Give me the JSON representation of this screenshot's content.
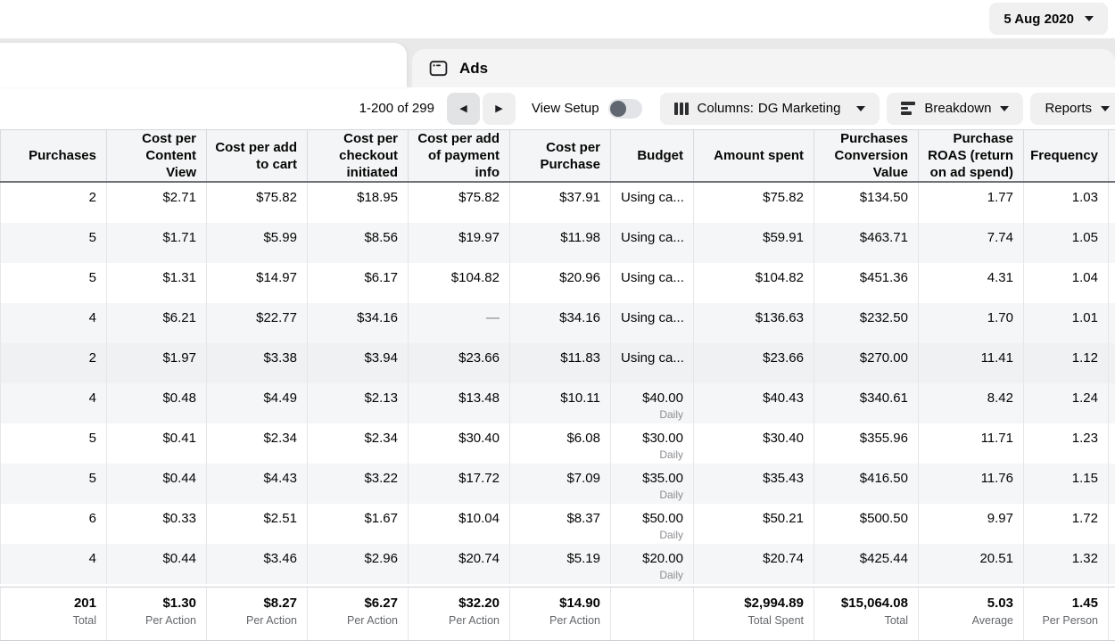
{
  "topbar": {
    "date_label": "5 Aug 2020"
  },
  "tabs": {
    "ads_label": "Ads"
  },
  "toolbar": {
    "pagination_text": "1-200 of 299",
    "view_setup_label": "View Setup",
    "columns_label": "Columns:",
    "columns_value": "DG Marketing",
    "breakdown_label": "Breakdown",
    "reports_label": "Reports"
  },
  "icons": {
    "arrow_left": "◀",
    "arrow_right": "▶",
    "caret_down": "▾"
  },
  "table": {
    "hovered_row": 5,
    "columns": [
      "Purchases",
      "Cost per Content View",
      "Cost per add to cart",
      "Cost per checkout initiated",
      "Cost per add of payment info",
      "Cost per Purchase",
      "Budget",
      "Amount spent",
      "Purchases Conversion Value",
      "Purchase ROAS (return on ad spend)",
      "Frequency"
    ],
    "rows": [
      [
        "2",
        "$2.71",
        "$75.82",
        "$18.95",
        "$75.82",
        "$37.91",
        {
          "text": "Using ca...",
          "align": "left"
        },
        "$75.82",
        "$134.50",
        "1.77",
        "1.03"
      ],
      [
        "5",
        "$1.71",
        "$5.99",
        "$8.56",
        "$19.97",
        "$11.98",
        {
          "text": "Using ca...",
          "align": "left"
        },
        "$59.91",
        "$463.71",
        "7.74",
        "1.05"
      ],
      [
        "5",
        "$1.31",
        "$14.97",
        "$6.17",
        "$104.82",
        "$20.96",
        {
          "text": "Using ca...",
          "align": "left"
        },
        "$104.82",
        "$451.36",
        "4.31",
        "1.04"
      ],
      [
        "4",
        "$6.21",
        "$22.77",
        "$34.16",
        "—",
        "$34.16",
        {
          "text": "Using ca...",
          "align": "left"
        },
        "$136.63",
        "$232.50",
        "1.70",
        "1.01"
      ],
      [
        "2",
        "$1.97",
        "$3.38",
        "$3.94",
        "$23.66",
        "$11.83",
        {
          "text": "Using ca...",
          "align": "left"
        },
        "$23.66",
        "$270.00",
        "11.41",
        "1.12"
      ],
      [
        "4",
        "$0.48",
        "$4.49",
        "$2.13",
        "$13.48",
        "$10.11",
        {
          "text": "$40.00",
          "sub": "Daily",
          "align": "right"
        },
        "$40.43",
        "$340.61",
        "8.42",
        "1.24"
      ],
      [
        "5",
        "$0.41",
        "$2.34",
        "$2.34",
        "$30.40",
        "$6.08",
        {
          "text": "$30.00",
          "sub": "Daily",
          "align": "right"
        },
        "$30.40",
        "$355.96",
        "11.71",
        "1.23"
      ],
      [
        "5",
        "$0.44",
        "$4.43",
        "$3.22",
        "$17.72",
        "$7.09",
        {
          "text": "$35.00",
          "sub": "Daily",
          "align": "right"
        },
        "$35.43",
        "$416.50",
        "11.76",
        "1.15"
      ],
      [
        "6",
        "$0.33",
        "$2.51",
        "$1.67",
        "$10.04",
        "$8.37",
        {
          "text": "$50.00",
          "sub": "Daily",
          "align": "right"
        },
        "$50.21",
        "$500.50",
        "9.97",
        "1.72"
      ],
      [
        "4",
        "$0.44",
        "$3.46",
        "$2.96",
        "$20.74",
        "$5.19",
        {
          "text": "$20.00",
          "sub": "Daily",
          "align": "right"
        },
        "$20.74",
        "$425.44",
        "20.51",
        "1.32"
      ]
    ],
    "totals": [
      {
        "value": "201",
        "caption": "Total"
      },
      {
        "value": "$1.30",
        "caption": "Per Action"
      },
      {
        "value": "$8.27",
        "caption": "Per Action"
      },
      {
        "value": "$6.27",
        "caption": "Per Action"
      },
      {
        "value": "$32.20",
        "caption": "Per Action"
      },
      {
        "value": "$14.90",
        "caption": "Per Action"
      },
      {
        "value": "",
        "caption": ""
      },
      {
        "value": "$2,994.89",
        "caption": "Total Spent"
      },
      {
        "value": "$15,064.08",
        "caption": "Total"
      },
      {
        "value": "5.03",
        "caption": "Average"
      },
      {
        "value": "1.45",
        "caption": "Per Person"
      }
    ]
  }
}
